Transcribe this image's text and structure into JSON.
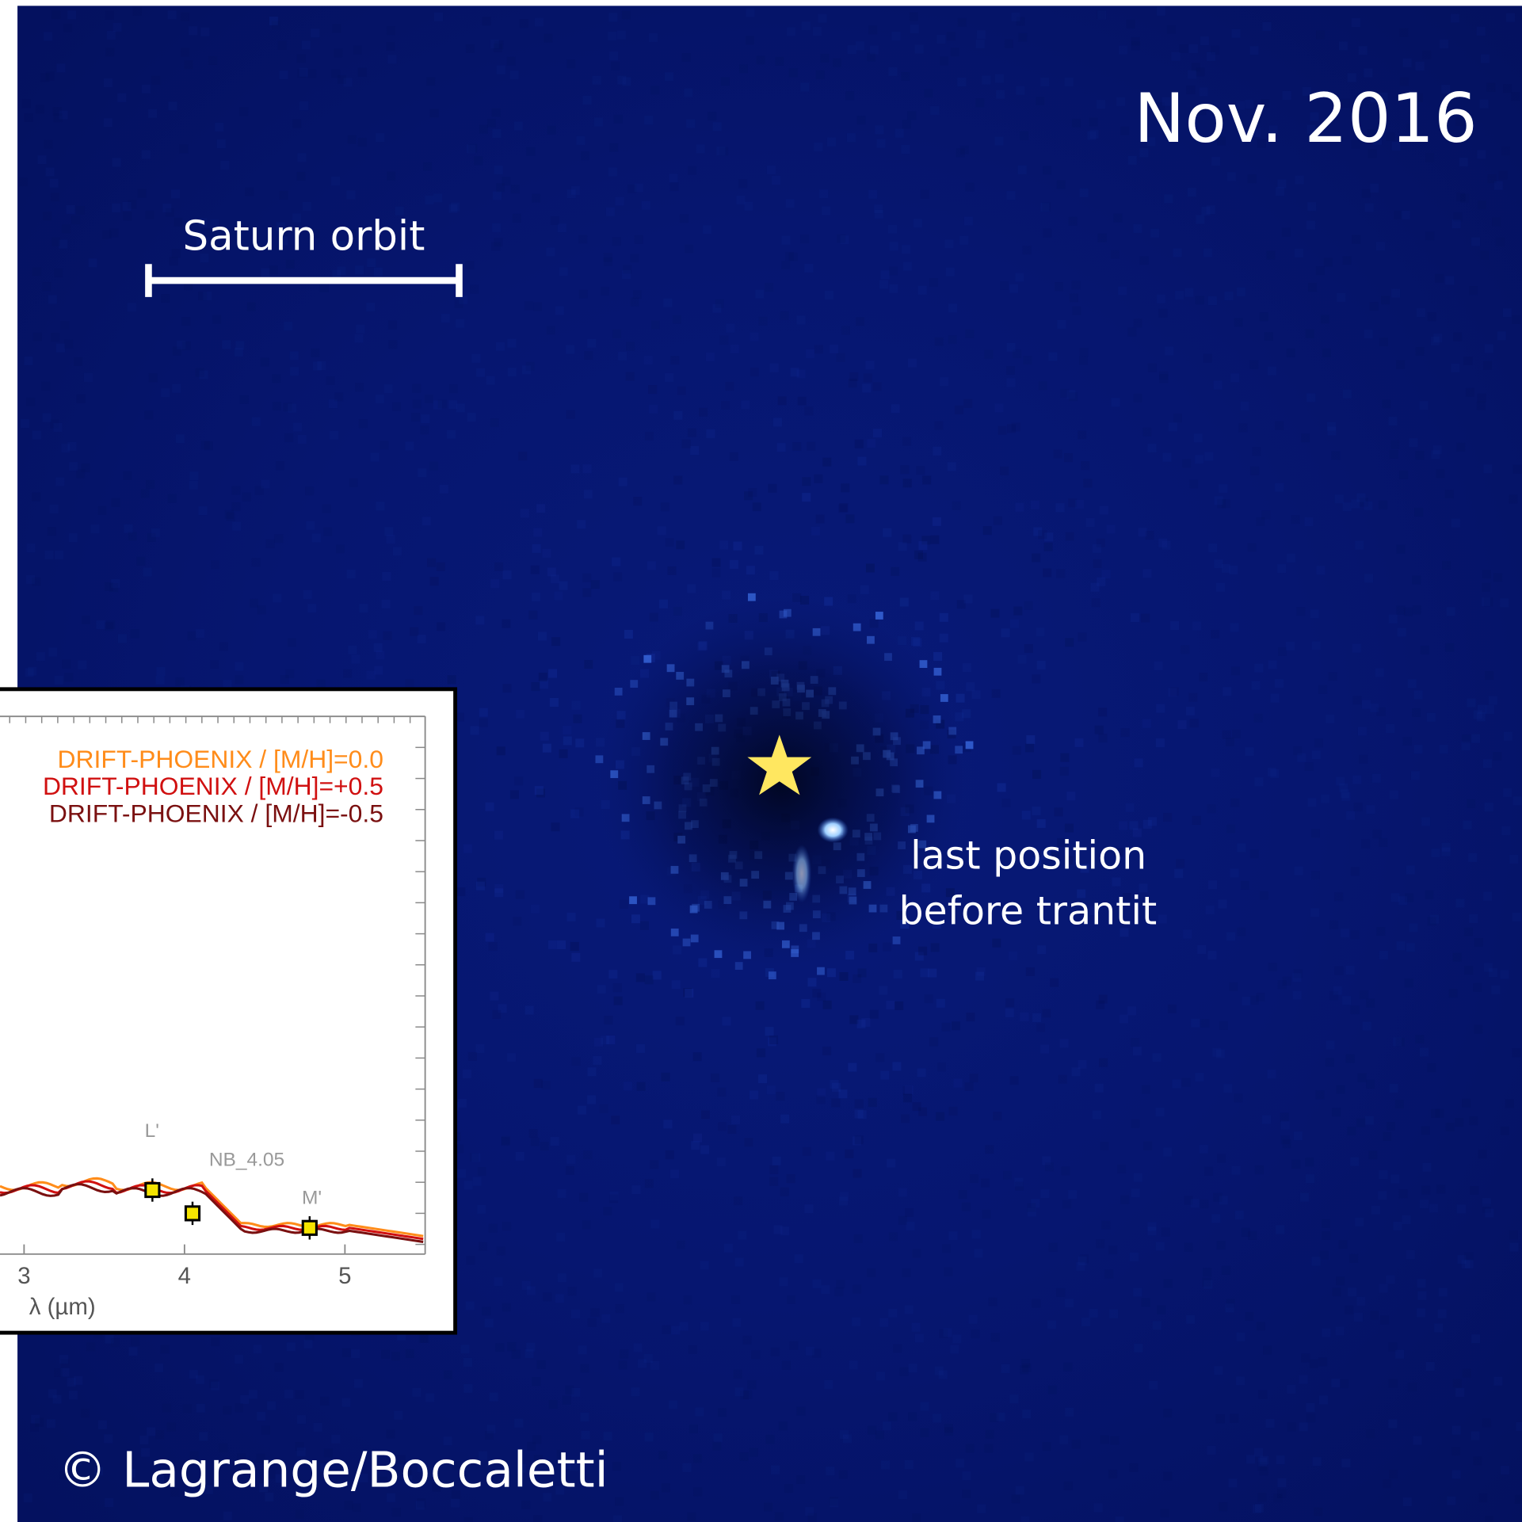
{
  "date": "Nov. 2016",
  "scale_bar_label": "Saturn orbit",
  "annotation": [
    "last position",
    "before trantit"
  ],
  "credit": "© Lagrange/Boccaletti",
  "chart_data": {
    "type": "line",
    "xlabel": "λ (µm)",
    "xlim": [
      2.85,
      5.5
    ],
    "xticks": [
      3,
      4,
      5
    ],
    "legend": [
      {
        "name": "DRIFT-PHOENIX / [M/H]=0.0",
        "color": "#ff8c1a"
      },
      {
        "name": "DRIFT-PHOENIX / [M/H]=+0.5",
        "color": "#d01010"
      },
      {
        "name": "DRIFT-PHOENIX / [M/H]=-0.5",
        "color": "#7a1010"
      }
    ],
    "filters": [
      {
        "label": "L'",
        "x": 3.8
      },
      {
        "label": "NB_4.05",
        "x": 4.05
      },
      {
        "label": "M'",
        "x": 4.78
      }
    ]
  }
}
